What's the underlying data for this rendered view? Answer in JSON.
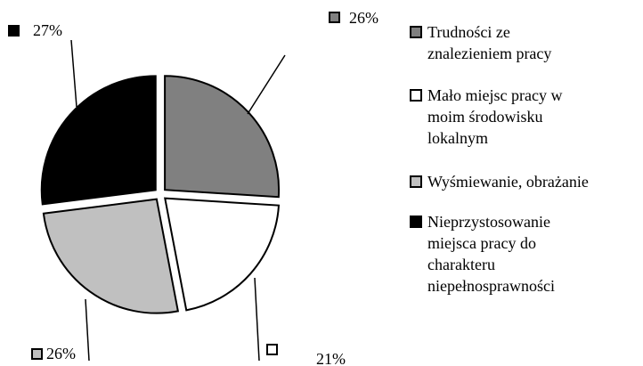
{
  "chart_data": {
    "type": "pie",
    "categories": [
      "Trudności ze znalezieniem pracy",
      "Mało miejsc pracy w moim środowisku lokalnym",
      "Wyśmiewanie, obrażanie",
      "Nieprzystosowanie miejsca pracy do charakteru niepełnosprawności"
    ],
    "values": [
      26,
      21,
      26,
      27
    ],
    "value_labels": [
      "26%",
      "21%",
      "26%",
      "27%"
    ],
    "colors": [
      "#808080",
      "#ffffff",
      "#c0c0c0",
      "#000000"
    ],
    "legend": "right"
  }
}
